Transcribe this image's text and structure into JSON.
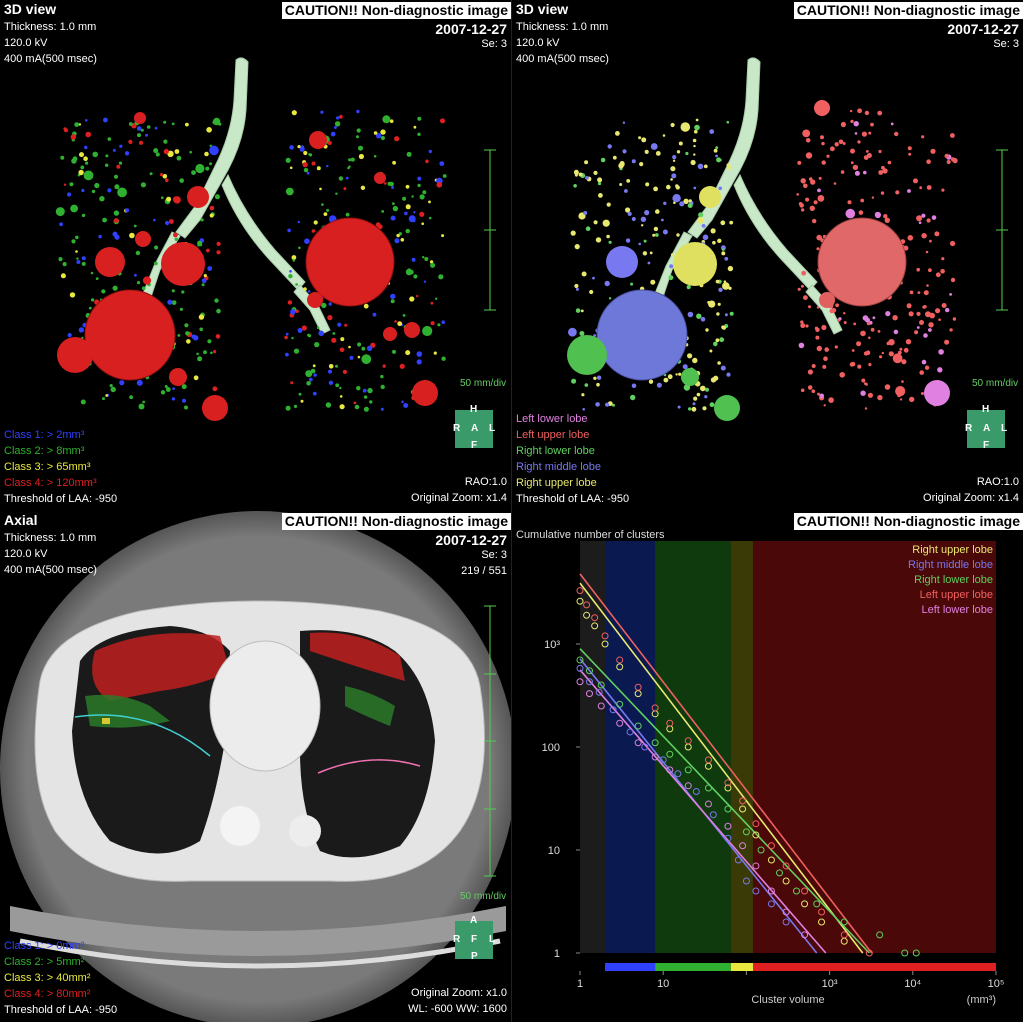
{
  "caution": "CAUTION!! Non-diagnostic image",
  "date": "2007-12-27",
  "series": "Se: 3",
  "scan": {
    "thickness": "Thickness: 1.0 mm",
    "kv": "120.0 kV",
    "ma": "400 mA(500 msec)"
  },
  "panel1": {
    "title": "3D view",
    "scale": "50 mm/div",
    "classes": [
      "Class 1: > 2mm³",
      "Class 2: > 8mm³",
      "Class 3: > 65mm³",
      "Class 4: > 120mm³"
    ],
    "threshold": "Threshold of LAA: -950",
    "rao": "RAO:1.0",
    "zoom": "Original Zoom: x1.4",
    "orient": {
      "top": "H",
      "left": "R",
      "center": "A",
      "right": "L",
      "bottom": "F"
    }
  },
  "panel2": {
    "title": "3D view",
    "scale": "50 mm/div",
    "lobes": [
      "Left lower lobe",
      "Left upper lobe",
      "Right lower lobe",
      "Right middle lobe",
      "Right upper lobe"
    ],
    "threshold": "Threshold of LAA: -950",
    "rao": "RAO:1.0",
    "zoom": "Original Zoom: x1.4",
    "orient": {
      "top": "H",
      "left": "R",
      "center": "A",
      "right": "L",
      "bottom": "F"
    }
  },
  "panel3": {
    "title": "Axial",
    "slice": "219 / 551",
    "scale": "50 mm/div",
    "classes": [
      "Class 1: > 0mm²",
      "Class 2: > 5mm²",
      "Class 3: > 40mm²",
      "Class 4: > 80mm²"
    ],
    "threshold": "Threshold of LAA: -950",
    "zoom": "Original Zoom: x1.0",
    "window": "WL: -600  WW: 1600",
    "orient": {
      "top": "A",
      "left": "R",
      "center": "F",
      "right": "L",
      "bottom": "P"
    }
  },
  "colors": {
    "class1": "#3040ff",
    "class2": "#30b030",
    "class3": "#e8e840",
    "class4": "#e02020",
    "right_upper": "#e8e870",
    "right_middle": "#7878f0",
    "right_lower": "#60d060",
    "left_upper": "#f06060",
    "left_lower": "#e080e0"
  },
  "chart_data": {
    "type": "scatter",
    "title": "Cumulative number of clusters",
    "xlabel": "Cluster volume",
    "xunit": "(mm³)",
    "xscale": "log",
    "yscale": "log",
    "xlim": [
      1,
      100000
    ],
    "ylim": [
      1,
      10000
    ],
    "xticks": [
      "1",
      "10",
      "10³",
      "10⁴",
      "10⁵"
    ],
    "xtick_values": [
      1,
      10,
      1000,
      10000,
      100000
    ],
    "yticks": [
      "1",
      "10",
      "100",
      "10³"
    ],
    "ytick_values": [
      1,
      10,
      100,
      1000
    ],
    "extra_xtick_values": [
      100
    ],
    "bands": [
      {
        "from": 2,
        "to": 8,
        "color": "class1"
      },
      {
        "from": 8,
        "to": 65,
        "color": "class2"
      },
      {
        "from": 65,
        "to": 120,
        "color": "class3"
      },
      {
        "from": 120,
        "to": 100000,
        "color": "class4"
      }
    ],
    "legend_placement": "top-right",
    "series": [
      {
        "name": "Right upper lobe",
        "color": "right_upper",
        "points": [
          [
            1,
            2600
          ],
          [
            1.2,
            1900
          ],
          [
            1.5,
            1500
          ],
          [
            2,
            1000
          ],
          [
            3,
            600
          ],
          [
            5,
            330
          ],
          [
            8,
            210
          ],
          [
            12,
            150
          ],
          [
            20,
            100
          ],
          [
            35,
            65
          ],
          [
            60,
            40
          ],
          [
            90,
            25
          ],
          [
            130,
            14
          ],
          [
            200,
            8
          ],
          [
            300,
            5
          ],
          [
            500,
            3
          ],
          [
            800,
            2
          ],
          [
            1500,
            1.3
          ]
        ],
        "fit": [
          [
            1,
            3900
          ],
          [
            2500,
            1
          ]
        ]
      },
      {
        "name": "Right middle lobe",
        "color": "right_middle",
        "points": [
          [
            1,
            580
          ],
          [
            1.3,
            430
          ],
          [
            1.7,
            340
          ],
          [
            2.5,
            230
          ],
          [
            4,
            140
          ],
          [
            6,
            100
          ],
          [
            10,
            75
          ],
          [
            15,
            55
          ],
          [
            25,
            37
          ],
          [
            40,
            22
          ],
          [
            60,
            13
          ],
          [
            80,
            8
          ],
          [
            100,
            5
          ],
          [
            130,
            4
          ],
          [
            200,
            3
          ],
          [
            300,
            2
          ]
        ],
        "fit": [
          [
            1,
            720
          ],
          [
            700,
            1
          ]
        ]
      },
      {
        "name": "Right lower lobe",
        "color": "right_lower",
        "points": [
          [
            1,
            700
          ],
          [
            1.3,
            550
          ],
          [
            1.8,
            400
          ],
          [
            3,
            260
          ],
          [
            5,
            160
          ],
          [
            8,
            110
          ],
          [
            12,
            85
          ],
          [
            20,
            60
          ],
          [
            35,
            40
          ],
          [
            60,
            25
          ],
          [
            100,
            15
          ],
          [
            150,
            10
          ],
          [
            250,
            6
          ],
          [
            400,
            4
          ],
          [
            700,
            3
          ],
          [
            1500,
            2
          ],
          [
            4000,
            1.5
          ],
          [
            8000,
            1
          ],
          [
            11000,
            1
          ]
        ],
        "fit": [
          [
            1,
            900
          ],
          [
            3000,
            1
          ]
        ]
      },
      {
        "name": "Left upper lobe",
        "color": "left_upper",
        "points": [
          [
            1,
            3300
          ],
          [
            1.2,
            2400
          ],
          [
            1.5,
            1800
          ],
          [
            2,
            1200
          ],
          [
            3,
            700
          ],
          [
            5,
            380
          ],
          [
            8,
            240
          ],
          [
            12,
            170
          ],
          [
            20,
            115
          ],
          [
            35,
            75
          ],
          [
            60,
            45
          ],
          [
            90,
            30
          ],
          [
            130,
            18
          ],
          [
            200,
            11
          ],
          [
            300,
            7
          ],
          [
            500,
            4
          ],
          [
            800,
            2.5
          ],
          [
            1500,
            1.5
          ],
          [
            3000,
            1
          ]
        ],
        "fit": [
          [
            1,
            4800
          ],
          [
            3200,
            1
          ]
        ]
      },
      {
        "name": "Left lower lobe",
        "color": "left_lower",
        "points": [
          [
            1,
            430
          ],
          [
            1.3,
            330
          ],
          [
            1.8,
            250
          ],
          [
            3,
            170
          ],
          [
            5,
            110
          ],
          [
            8,
            80
          ],
          [
            12,
            60
          ],
          [
            20,
            42
          ],
          [
            35,
            28
          ],
          [
            60,
            17
          ],
          [
            90,
            11
          ],
          [
            130,
            7
          ],
          [
            200,
            4
          ],
          [
            300,
            2.5
          ],
          [
            500,
            1.5
          ]
        ],
        "fit": [
          [
            1,
            560
          ],
          [
            900,
            1
          ]
        ]
      }
    ]
  }
}
